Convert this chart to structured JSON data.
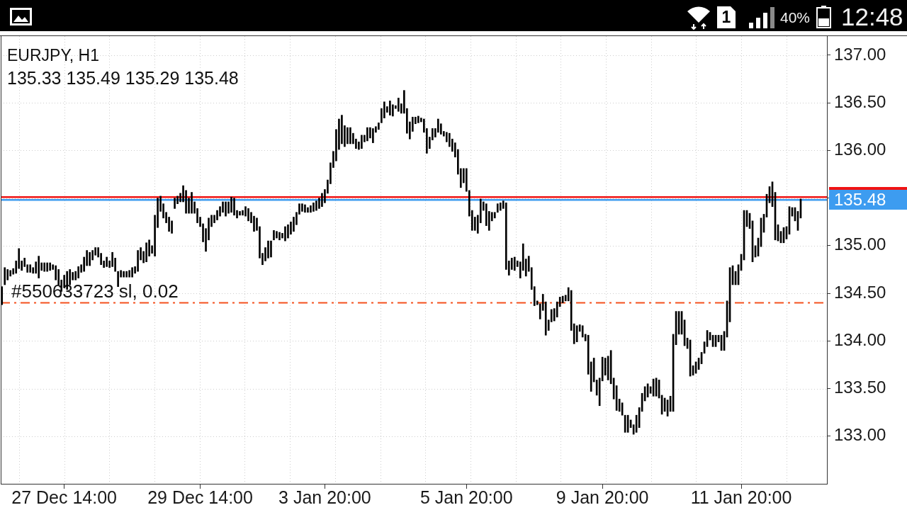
{
  "chart_data": {
    "type": "bar",
    "title": "EURJPY, H1",
    "subtitle": "135.33 135.49 135.29 135.48",
    "color": "#000000",
    "categories": [
      null,
      null,
      null,
      null,
      null,
      null,
      null,
      null,
      null,
      null,
      null,
      null,
      null,
      null,
      null,
      null,
      null,
      null,
      null,
      null,
      null,
      null,
      "27 Dec 14:00",
      null,
      null,
      null,
      null,
      null,
      null,
      null,
      null,
      null,
      null,
      null,
      null,
      null,
      null,
      null,
      null,
      null,
      null,
      null,
      null,
      null,
      null,
      null,
      null,
      null,
      null,
      null,
      null,
      null,
      null,
      null,
      null,
      null,
      null,
      null,
      null,
      null,
      null,
      null,
      null,
      null,
      null,
      null,
      null,
      null,
      null,
      null,
      "29 Dec 14:00",
      null,
      null,
      null,
      null,
      null,
      null,
      null,
      null,
      null,
      null,
      null,
      null,
      null,
      null,
      null,
      null,
      null,
      null,
      null,
      null,
      null,
      null,
      null,
      null,
      null,
      null,
      null,
      null,
      null,
      null,
      null,
      null,
      null,
      null,
      null,
      null,
      null,
      null,
      null,
      null,
      null,
      null,
      null,
      "3 Jan 20:00",
      null,
      null,
      null,
      null,
      null,
      null,
      null,
      null,
      null,
      null,
      null,
      null,
      null,
      null,
      null,
      null,
      null,
      null,
      null,
      null,
      null,
      null,
      null,
      null,
      null,
      null,
      null,
      null,
      null,
      null,
      null,
      null,
      null,
      null,
      null,
      null,
      null,
      null,
      null,
      null,
      null,
      null,
      null,
      null,
      null,
      null,
      null,
      null,
      null,
      "5 Jan 20:00",
      null,
      null,
      null,
      null,
      null,
      null,
      null,
      null,
      null,
      null,
      null,
      null,
      null,
      null,
      null,
      null,
      null,
      null,
      null,
      null,
      null,
      null,
      null,
      null,
      null,
      null,
      null,
      null,
      null,
      null,
      null,
      null,
      null,
      null,
      null,
      null,
      null,
      null,
      null,
      null,
      null,
      null,
      null,
      null,
      null,
      null,
      null,
      "9 Jan 20:00",
      null,
      null,
      null,
      null,
      null,
      null,
      null,
      null,
      null,
      null,
      null,
      null,
      null,
      null,
      null,
      null,
      null,
      null,
      null,
      null,
      null,
      null,
      null,
      null,
      null,
      null,
      null,
      null,
      null,
      null,
      null,
      null,
      null,
      null,
      null,
      null,
      null,
      null,
      null,
      null,
      null,
      null,
      null,
      null,
      null,
      null,
      null,
      null,
      "11 Jan 20:00",
      null,
      null,
      null,
      null,
      null,
      null,
      null,
      null,
      null,
      null,
      null,
      null,
      null,
      null,
      null,
      null,
      null,
      null,
      null,
      null,
      null
    ],
    "base": [
      134.38,
      134.59,
      134.64,
      134.68,
      134.7,
      134.71,
      134.76,
      134.74,
      134.78,
      134.72,
      134.72,
      134.71,
      134.71,
      134.66,
      134.74,
      134.73,
      134.73,
      134.74,
      134.75,
      134.64,
      134.59,
      134.52,
      134.56,
      134.54,
      134.59,
      134.64,
      134.64,
      134.66,
      134.72,
      134.73,
      134.79,
      134.79,
      134.85,
      134.9,
      134.88,
      134.8,
      134.77,
      134.78,
      134.77,
      134.78,
      134.73,
      134.57,
      134.67,
      134.67,
      134.67,
      134.67,
      134.67,
      134.71,
      134.73,
      134.85,
      134.82,
      134.83,
      134.89,
      134.92,
      134.89,
      135.19,
      135.36,
      135.29,
      135.24,
      135.15,
      135.13,
      135.39,
      135.44,
      135.46,
      135.46,
      135.34,
      135.34,
      135.34,
      135.34,
      135.24,
      135.2,
      135.04,
      134.94,
      135.06,
      135.2,
      135.24,
      135.27,
      135.31,
      135.35,
      135.31,
      135.34,
      135.35,
      135.32,
      135.29,
      135.32,
      135.32,
      135.31,
      135.26,
      135.24,
      135.15,
      135.16,
      134.87,
      134.8,
      134.84,
      134.87,
      134.88,
      135.06,
      135.08,
      135.06,
      135.08,
      135.05,
      135.08,
      135.12,
      135.15,
      135.22,
      135.33,
      135.36,
      135.35,
      135.35,
      135.35,
      135.36,
      135.37,
      135.39,
      135.41,
      135.45,
      135.55,
      135.65,
      135.82,
      135.89,
      136.01,
      136.07,
      136.04,
      136.07,
      136.07,
      136.07,
      136.02,
      136.01,
      136.02,
      136.09,
      136.1,
      136.13,
      136.08,
      136.19,
      136.22,
      136.29,
      136.34,
      136.4,
      136.37,
      136.36,
      136.44,
      136.41,
      136.39,
      136.39,
      136.18,
      136.12,
      136.2,
      136.28,
      136.29,
      136.3,
      136.19,
      135.97,
      136.02,
      136.11,
      136.14,
      136.19,
      136.17,
      136.15,
      136.09,
      136.04,
      135.99,
      135.93,
      135.75,
      135.61,
      135.66,
      135.57,
      135.31,
      135.16,
      135.16,
      135.13,
      135.24,
      135.37,
      135.21,
      135.16,
      135.26,
      135.29,
      135.35,
      135.37,
      135.39,
      134.75,
      134.69,
      134.75,
      134.74,
      134.78,
      134.66,
      134.74,
      134.68,
      134.73,
      134.54,
      134.37,
      134.38,
      134.23,
      134.32,
      134.06,
      134.11,
      134.2,
      134.21,
      134.25,
      134.36,
      134.4,
      134.42,
      134.42,
      134.11,
      133.97,
      133.99,
      134.1,
      134.04,
      134.0,
      133.65,
      133.47,
      133.57,
      133.43,
      133.32,
      133.58,
      133.64,
      133.59,
      133.55,
      133.39,
      133.27,
      133.26,
      133.22,
      133.04,
      133.04,
      133.09,
      133.02,
      133.04,
      133.09,
      133.26,
      133.37,
      133.41,
      133.45,
      133.42,
      133.42,
      133.4,
      133.23,
      133.26,
      133.21,
      133.26,
      133.26,
      133.96,
      134.07,
      134.07,
      133.95,
      133.92,
      133.63,
      133.64,
      133.66,
      133.7,
      133.76,
      133.87,
      133.94,
      134.01,
      133.94,
      133.94,
      133.99,
      133.9,
      133.9,
      134.04,
      134.2,
      134.59,
      134.59,
      134.59,
      134.74,
      134.85,
      135.2,
      135.18,
      134.83,
      134.88,
      134.89,
      134.99,
      135.14,
      135.3,
      135.45,
      135.41,
      135.06,
      135.05,
      135.03,
      135.03,
      135.07,
      135.12,
      135.31,
      135.26,
      135.16,
      135.29
    ],
    "values": [
      0.19,
      0.18,
      0.11,
      0.06,
      0.06,
      0.13,
      0.21,
      0.1,
      0.09,
      0.08,
      0.08,
      0.06,
      0.12,
      0.23,
      0.08,
      0.09,
      0.09,
      0.08,
      0.05,
      0.15,
      0.16,
      0.12,
      0.13,
      0.19,
      0.16,
      0.08,
      0.09,
      0.12,
      0.08,
      0.15,
      0.16,
      0.14,
      0.1,
      0.08,
      0.1,
      0.12,
      0.07,
      0.1,
      0.07,
      0.15,
      0.14,
      0.16,
      0.07,
      0.06,
      0.06,
      0.07,
      0.1,
      0.07,
      0.22,
      0.13,
      0.12,
      0.2,
      0.17,
      0.08,
      0.43,
      0.31,
      0.16,
      0.15,
      0.11,
      0.15,
      0.13,
      0.11,
      0.08,
      0.09,
      0.17,
      0.24,
      0.16,
      0.22,
      0.12,
      0.15,
      0.1,
      0.19,
      0.24,
      0.23,
      0.12,
      0.08,
      0.1,
      0.1,
      0.11,
      0.15,
      0.12,
      0.16,
      0.18,
      0.08,
      0.04,
      0.05,
      0.1,
      0.13,
      0.11,
      0.16,
      0.13,
      0.33,
      0.12,
      0.14,
      0.18,
      0.17,
      0.1,
      0.07,
      0.08,
      0.05,
      0.15,
      0.14,
      0.13,
      0.15,
      0.13,
      0.11,
      0.08,
      0.08,
      0.05,
      0.07,
      0.09,
      0.1,
      0.11,
      0.14,
      0.14,
      0.14,
      0.22,
      0.17,
      0.33,
      0.32,
      0.3,
      0.22,
      0.17,
      0.17,
      0.11,
      0.1,
      0.08,
      0.14,
      0.07,
      0.14,
      0.11,
      0.15,
      0.06,
      0.07,
      0.15,
      0.17,
      0.06,
      0.15,
      0.12,
      0.03,
      0.14,
      0.1,
      0.24,
      0.26,
      0.18,
      0.15,
      0.07,
      0.07,
      0.04,
      0.14,
      0.26,
      0.12,
      0.12,
      0.09,
      0.14,
      0.11,
      0.05,
      0.1,
      0.14,
      0.13,
      0.15,
      0.26,
      0.2,
      0.15,
      0.24,
      0.27,
      0.21,
      0.14,
      0.19,
      0.25,
      0.09,
      0.23,
      0.2,
      0.09,
      0.06,
      0.09,
      0.08,
      0.08,
      0.7,
      0.15,
      0.12,
      0.14,
      0.06,
      0.17,
      0.28,
      0.18,
      0.16,
      0.23,
      0.2,
      0.04,
      0.16,
      0.17,
      0.35,
      0.11,
      0.13,
      0.13,
      0.16,
      0.1,
      0.07,
      0.06,
      0.14,
      0.42,
      0.21,
      0.17,
      0.07,
      0.12,
      0.07,
      0.41,
      0.31,
      0.25,
      0.16,
      0.29,
      0.25,
      0.18,
      0.25,
      0.35,
      0.22,
      0.26,
      0.13,
      0.13,
      0.18,
      0.18,
      0.08,
      0.1,
      0.18,
      0.21,
      0.19,
      0.15,
      0.14,
      0.07,
      0.18,
      0.19,
      0.19,
      0.2,
      0.14,
      0.17,
      0.16,
      0.81,
      0.35,
      0.24,
      0.24,
      0.27,
      0.11,
      0.38,
      0.1,
      0.12,
      0.12,
      0.12,
      0.12,
      0.17,
      0.08,
      0.12,
      0.12,
      0.07,
      0.16,
      0.2,
      0.38,
      0.57,
      0.2,
      0.14,
      0.21,
      0.17,
      0.52,
      0.17,
      0.16,
      0.43,
      0.12,
      0.19,
      0.3,
      0.19,
      0.24,
      0.17,
      0.26,
      0.5,
      0.17,
      0.12,
      0.16,
      0.13,
      0.29,
      0.09,
      0.14,
      0.2,
      0.2
    ],
    "ylim": [
      132.5,
      137.2
    ],
    "yticks": [
      {
        "value": 133,
        "label": "133.00"
      },
      {
        "value": 133.5,
        "label": "133.50"
      },
      {
        "value": 134,
        "label": "134.00"
      },
      {
        "value": 134.5,
        "label": "134.50"
      },
      {
        "value": 135,
        "label": "135.00"
      },
      {
        "value": 135.5,
        "label": null
      },
      {
        "value": 136,
        "label": "136.00"
      },
      {
        "value": 136.5,
        "label": "136.50"
      },
      {
        "value": 137,
        "label": "137.00"
      }
    ],
    "grid": true,
    "ref_lines": [
      {
        "axis": "y",
        "value": 134.4,
        "label": "#550633723 sl, 0.02",
        "color": "#f4511e",
        "line_style": "dashed"
      },
      {
        "axis": "y",
        "value": 135.51,
        "color": "#f01414"
      },
      {
        "axis": "y",
        "value": 135.48,
        "label": "135.48",
        "color": "#3d9cf0"
      }
    ],
    "annotations": [
      "1",
      "40%",
      "12:48"
    ]
  }
}
